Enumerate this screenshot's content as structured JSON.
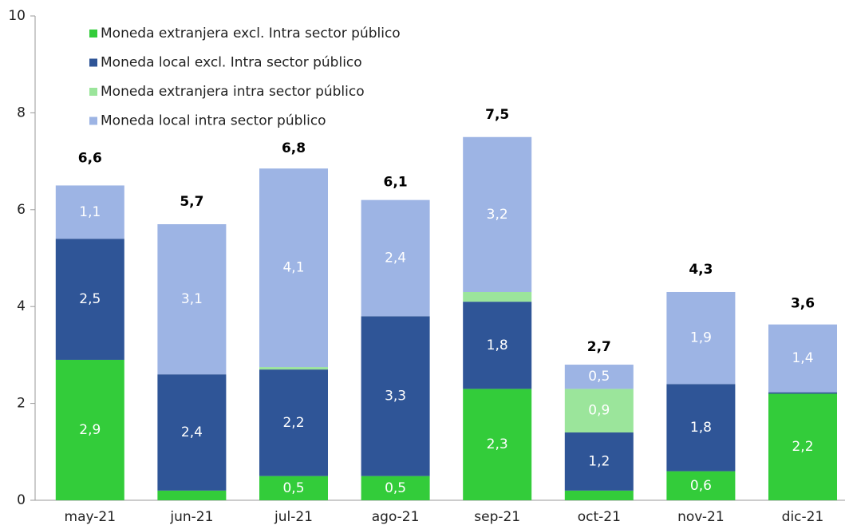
{
  "chart_data": {
    "type": "stacked_bar",
    "categories": [
      "may-21",
      "jun-21",
      "jul-21",
      "ago-21",
      "sep-21",
      "oct-21",
      "nov-21",
      "dic-21"
    ],
    "series": [
      {
        "name": "Moneda extranjera excl. Intra sector público",
        "color": "#33cc3a",
        "values": [
          2.9,
          0.2,
          0.5,
          0.5,
          2.3,
          0.2,
          0.6,
          2.2
        ],
        "value_labels": [
          "2,9",
          null,
          "0,5",
          "0,5",
          "2,3",
          null,
          "0,6",
          "2,2"
        ]
      },
      {
        "name": "Moneda local excl. Intra sector público",
        "color": "#2f5597",
        "values": [
          2.5,
          2.4,
          2.2,
          3.3,
          1.8,
          1.2,
          1.8,
          0.03
        ],
        "value_labels": [
          "2,5",
          "2,4",
          "2,2",
          "3,3",
          "1,8",
          "1,2",
          "1,8",
          null
        ]
      },
      {
        "name": "Moneda extranjera intra sector público",
        "color": "#9be59b",
        "values": [
          0,
          0,
          0.05,
          0,
          0.2,
          0.9,
          0,
          0
        ],
        "value_labels": [
          null,
          null,
          null,
          null,
          null,
          "0,9",
          null,
          null
        ]
      },
      {
        "name": "Moneda local intra sector público",
        "color": "#9db4e4",
        "values": [
          1.1,
          3.1,
          4.1,
          2.4,
          3.2,
          0.5,
          1.9,
          1.4
        ],
        "value_labels": [
          "1,1",
          "3,1",
          "4,1",
          "2,4",
          "3,2",
          "0,5",
          "1,9",
          "1,4"
        ]
      }
    ],
    "totals": [
      6.6,
      5.7,
      6.8,
      6.1,
      7.5,
      2.7,
      4.3,
      3.6
    ],
    "total_labels": [
      "6,6",
      "5,7",
      "6,8",
      "6,1",
      "7,5",
      "2,7",
      "4,3",
      "3,6"
    ],
    "ylim": [
      0,
      10
    ],
    "yticks": [
      0,
      2,
      4,
      6,
      8,
      10
    ],
    "grid": false
  }
}
